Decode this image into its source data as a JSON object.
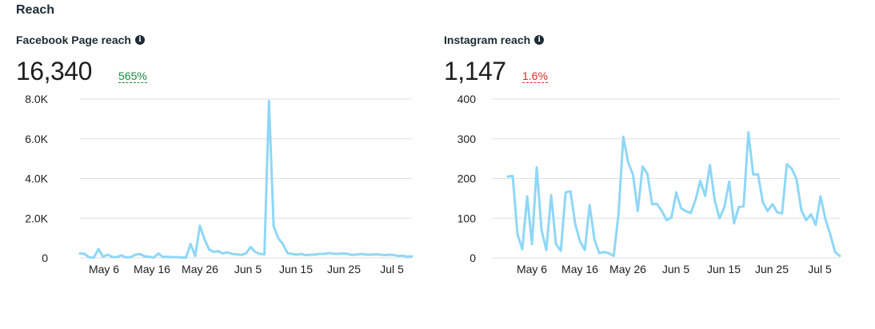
{
  "section": {
    "title": "Reach"
  },
  "panels": [
    {
      "label": "Facebook Page reach",
      "info_icon": "info-icon",
      "value": "16,340",
      "change": "565%",
      "change_direction": "up"
    },
    {
      "label": "Instagram reach",
      "info_icon": "info-icon",
      "value": "1,147",
      "change": "1.6%",
      "change_direction": "down"
    }
  ],
  "colors": {
    "line": "#8fd7f7",
    "grid": "#dddfe2",
    "positive": "#1a8a3e",
    "negative": "#d93025"
  },
  "chart_data": [
    {
      "type": "line",
      "title": "Facebook Page reach",
      "x_tick_labels": [
        "May 6",
        "May 16",
        "May 26",
        "Jun 5",
        "Jun 15",
        "Jun 25",
        "Jul 5"
      ],
      "y_tick_labels": [
        "0",
        "2.0K",
        "4.0K",
        "6.0K",
        "8.0K"
      ],
      "ylim": [
        0,
        8000
      ],
      "grid": true,
      "values": [
        230,
        200,
        30,
        20,
        450,
        60,
        170,
        50,
        40,
        130,
        30,
        40,
        160,
        200,
        80,
        60,
        20,
        220,
        50,
        60,
        40,
        40,
        20,
        20,
        700,
        100,
        1620,
        950,
        430,
        300,
        340,
        230,
        280,
        200,
        180,
        150,
        220,
        550,
        300,
        200,
        180,
        7900,
        1600,
        1000,
        700,
        250,
        200,
        160,
        200,
        140,
        160,
        170,
        200,
        200,
        250,
        210,
        200,
        230,
        200,
        150,
        170,
        200,
        170,
        160,
        180,
        170,
        140,
        160,
        150,
        100,
        110,
        70,
        80
      ]
    },
    {
      "type": "line",
      "title": "Instagram reach",
      "x_tick_labels": [
        "May 6",
        "May 16",
        "May 26",
        "Jun 5",
        "Jun 15",
        "Jun 25",
        "Jul 5"
      ],
      "y_tick_labels": [
        "0",
        "100",
        "200",
        "300",
        "400"
      ],
      "ylim": [
        0,
        400
      ],
      "grid": true,
      "values": [
        205,
        206,
        60,
        22,
        155,
        35,
        228,
        70,
        20,
        158,
        35,
        18,
        165,
        168,
        85,
        42,
        20,
        133,
        45,
        12,
        15,
        12,
        5,
        110,
        305,
        240,
        210,
        118,
        230,
        212,
        135,
        136,
        118,
        95,
        102,
        165,
        125,
        118,
        113,
        146,
        194,
        156,
        234,
        145,
        100,
        128,
        192,
        87,
        128,
        130,
        316,
        210,
        210,
        140,
        118,
        135,
        115,
        112,
        236,
        225,
        198,
        120,
        95,
        110,
        83,
        155,
        98,
        60,
        15,
        5
      ]
    }
  ]
}
